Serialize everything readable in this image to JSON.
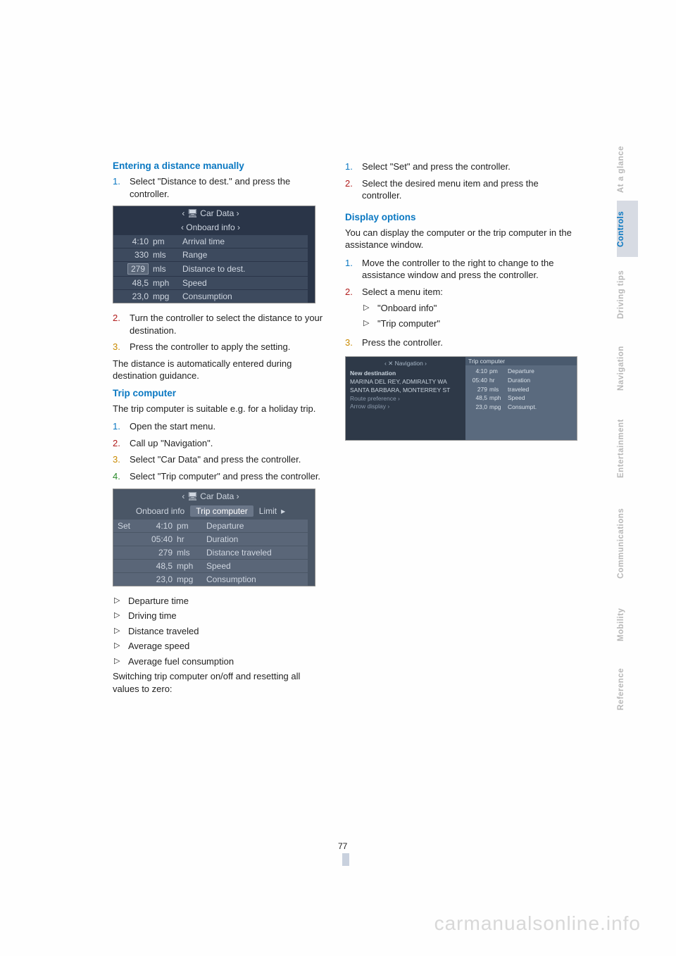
{
  "page_number": "77",
  "watermark": "carmanualsonline.info",
  "tabs": [
    {
      "label": "At a glance",
      "active": false,
      "key": "at-a-glance"
    },
    {
      "label": "Controls",
      "active": true,
      "key": "controls"
    },
    {
      "label": "Driving tips",
      "active": false,
      "key": "driving-tips"
    },
    {
      "label": "Navigation",
      "active": false,
      "key": "navigation"
    },
    {
      "label": "Entertainment",
      "active": false,
      "key": "entertainment"
    },
    {
      "label": "Communications",
      "active": false,
      "key": "communications"
    },
    {
      "label": "Mobility",
      "active": false,
      "key": "mobility"
    },
    {
      "label": "Reference",
      "active": false,
      "key": "reference"
    }
  ],
  "colors": {
    "heading_blue": "#0a78c2",
    "num1": "#0a78c2",
    "num2": "#b11b1b",
    "num3": "#c98a00",
    "num4": "#2a8a2a",
    "tab_inactive_text": "#b8b8b8",
    "tab_active_bg": "#d7dbe3",
    "screen_bg": "#3d4a5e",
    "screen_hdr_bg": "#2a3548",
    "screen_text": "#cfd6e0"
  },
  "left": {
    "h1": "Entering a distance manually",
    "step1": "Select \"Distance to dest.\" and press the controller.",
    "screen1": {
      "hdr1": "‹  🖥  Car Data  ›",
      "hdr2": "‹  Onboard info  ›",
      "rows": [
        {
          "a": "4:10",
          "b": "pm",
          "c": "Arrival time",
          "box": false
        },
        {
          "a": "330",
          "b": "mls",
          "c": "Range",
          "box": false
        },
        {
          "a": "279",
          "b": "mls",
          "c": "Distance to dest.",
          "box": true
        },
        {
          "a": "48,5",
          "b": "mph",
          "c": "Speed",
          "box": false
        },
        {
          "a": "23,0",
          "b": "mpg",
          "c": "Consumption",
          "box": false
        }
      ]
    },
    "step2": "Turn the controller to select the distance to your destination.",
    "step3": "Press the controller to apply the setting.",
    "para1": "The distance is automatically entered during destination guidance.",
    "h2": "Trip computer",
    "para2": "The trip computer is suitable e.g. for a holiday trip.",
    "s2_1": "Open the start menu.",
    "s2_2": "Call up \"Navigation\".",
    "s2_3": "Select \"Car Data\" and press the controller.",
    "s2_4": "Select \"Trip computer\" and press the controller.",
    "screen2": {
      "hdr1": "‹  🖥  Car Data  ›",
      "hdr2_left": "Onboard info",
      "hdr2_mid": "Trip computer",
      "hdr2_right": "Limit",
      "set": "Set",
      "rows": [
        {
          "a": "4:10",
          "b": "pm",
          "c": "Departure"
        },
        {
          "a": "05:40",
          "b": "hr",
          "c": "Duration"
        },
        {
          "a": "279",
          "b": "mls",
          "c": "Distance traveled"
        },
        {
          "a": "48,5",
          "b": "mph",
          "c": "Speed"
        },
        {
          "a": "23,0",
          "b": "mpg",
          "c": "Consumption"
        }
      ]
    },
    "bullets": [
      "Departure time",
      "Driving time",
      "Distance traveled",
      "Average speed",
      "Average fuel consumption"
    ],
    "para3": "Switching trip computer on/off and resetting all values to zero:"
  },
  "right": {
    "r_step1": "Select \"Set\" and press the controller.",
    "r_step2": "Select the desired menu item and press the controller.",
    "h3": "Display options",
    "para4": "You can display the computer or the trip computer in the assistance window.",
    "d_step1": "Move the controller to the right to change to the assistance window and press the controller.",
    "d_step2": "Select a menu item:",
    "d_b1": "\"Onboard info\"",
    "d_b2": "\"Trip computer\"",
    "d_step3": "Press the controller.",
    "navimg": {
      "hdr": "‹  ✕  Navigation  ›",
      "lines": [
        "New destination",
        "MARINA DEL REY, ADMIRALTY WA",
        "SANTA BARBARA, MONTERREY ST",
        "Route preference ›",
        "Arrow display ›"
      ],
      "rhdr": "Trip computer",
      "rrows": [
        {
          "a": "4:10",
          "b": "pm",
          "c": "Departure"
        },
        {
          "a": "05:40",
          "b": "hr",
          "c": "Duration"
        },
        {
          "a": "279",
          "b": "mls",
          "c": "traveled"
        },
        {
          "a": "48,5",
          "b": "mph",
          "c": "Speed"
        },
        {
          "a": "23,0",
          "b": "mpg",
          "c": "Consumpt."
        }
      ]
    }
  }
}
